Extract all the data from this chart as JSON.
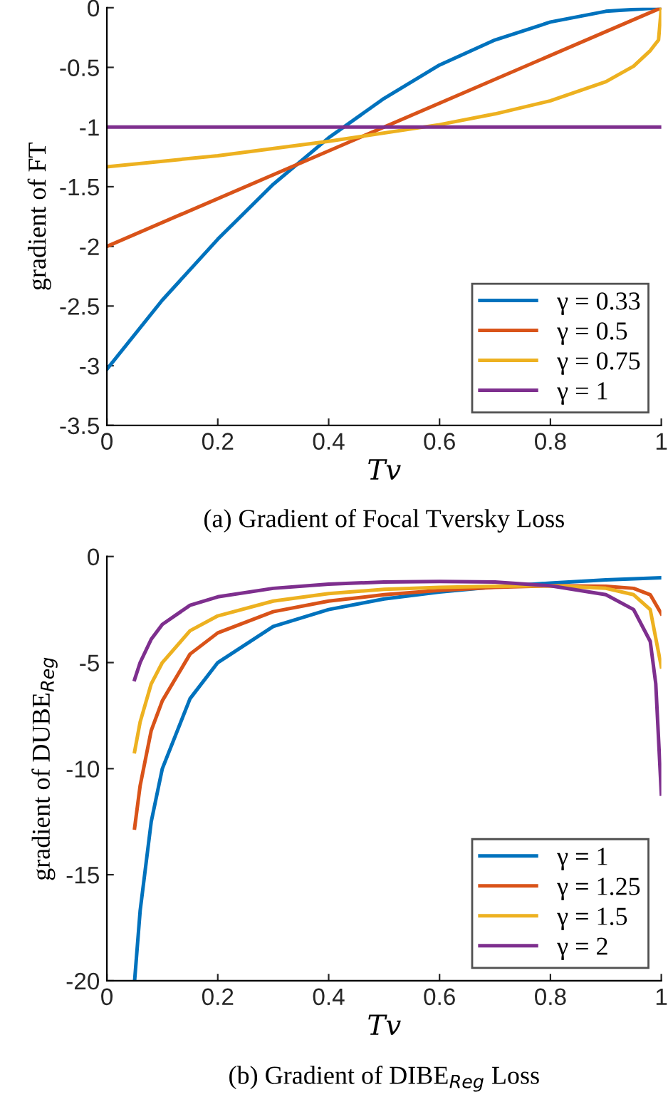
{
  "chart_data": [
    {
      "type": "line",
      "title": "(a) Gradient of Focal Tversky Loss",
      "xlabel": "Tv",
      "ylabel": "gradient of FT",
      "xlim": [
        0,
        1
      ],
      "ylim": [
        -3.5,
        0
      ],
      "xticks": [
        0,
        0.2,
        0.4,
        0.6,
        0.8,
        1
      ],
      "yticks": [
        -3.5,
        -3,
        -2.5,
        -2,
        -1.5,
        -1,
        -0.5,
        0
      ],
      "grid": false,
      "legend": "bottom right",
      "marker": "none",
      "line_style": "solid",
      "series": [
        {
          "name": "γ = 0.33",
          "color": "#0072bd",
          "x": [
            0,
            0.1,
            0.2,
            0.3,
            0.4,
            0.5,
            0.6,
            0.7,
            0.8,
            0.9,
            1
          ],
          "values": [
            -3.03,
            -2.45,
            -1.94,
            -1.48,
            -1.09,
            -0.76,
            -0.48,
            -0.27,
            -0.12,
            -0.03,
            0
          ]
        },
        {
          "name": "γ = 0.5",
          "color": "#d95319",
          "x": [
            0,
            1
          ],
          "values": [
            -2,
            0
          ]
        },
        {
          "name": "γ = 0.75",
          "color": "#edb120",
          "x": [
            0,
            0.2,
            0.4,
            0.6,
            0.7,
            0.8,
            0.9,
            0.95,
            0.98,
            0.995,
            1
          ],
          "values": [
            -1.333,
            -1.24,
            -1.12,
            -0.98,
            -0.89,
            -0.78,
            -0.62,
            -0.49,
            -0.36,
            -0.27,
            0
          ]
        },
        {
          "name": "γ = 1",
          "color": "#7e2f8e",
          "x": [
            0,
            1
          ],
          "values": [
            -1,
            -1
          ]
        }
      ]
    },
    {
      "type": "line",
      "title": "(b) Gradient of DIBE$_{Reg}$ Loss",
      "xlabel": "Tv",
      "ylabel": "gradient of DUBE$_{Reg}$",
      "xlim": [
        0,
        1
      ],
      "ylim": [
        -20,
        0
      ],
      "xticks": [
        0,
        0.2,
        0.4,
        0.6,
        0.8,
        1
      ],
      "yticks": [
        -20,
        -15,
        -10,
        -5,
        0
      ],
      "grid": false,
      "legend": "bottom right",
      "marker": "none",
      "line_style": "solid",
      "series": [
        {
          "name": "γ = 1",
          "color": "#0072bd",
          "x": [
            0.05,
            0.06,
            0.08,
            0.1,
            0.15,
            0.2,
            0.3,
            0.4,
            0.5,
            0.6,
            0.7,
            0.8,
            0.9,
            1
          ],
          "values": [
            -20,
            -16.7,
            -12.5,
            -10,
            -6.7,
            -5,
            -3.3,
            -2.5,
            -2,
            -1.67,
            -1.43,
            -1.25,
            -1.1,
            -1
          ]
        },
        {
          "name": "γ = 1.25",
          "color": "#d95319",
          "x": [
            0.05,
            0.06,
            0.08,
            0.1,
            0.15,
            0.2,
            0.3,
            0.4,
            0.5,
            0.6,
            0.7,
            0.8,
            0.9,
            0.95,
            0.98,
            1
          ],
          "values": [
            -12.8,
            -10.8,
            -8.2,
            -6.8,
            -4.6,
            -3.6,
            -2.6,
            -2.1,
            -1.8,
            -1.6,
            -1.45,
            -1.38,
            -1.4,
            -1.5,
            -1.8,
            -2.7
          ]
        },
        {
          "name": "γ = 1.5",
          "color": "#edb120",
          "x": [
            0.05,
            0.06,
            0.08,
            0.1,
            0.15,
            0.2,
            0.3,
            0.4,
            0.5,
            0.6,
            0.7,
            0.8,
            0.9,
            0.95,
            0.98,
            1
          ],
          "values": [
            -9.2,
            -7.8,
            -6,
            -5,
            -3.5,
            -2.8,
            -2.1,
            -1.75,
            -1.55,
            -1.45,
            -1.4,
            -1.38,
            -1.5,
            -1.8,
            -2.5,
            -5.2
          ]
        },
        {
          "name": "γ = 2",
          "color": "#7e2f8e",
          "x": [
            0.05,
            0.06,
            0.08,
            0.1,
            0.15,
            0.2,
            0.3,
            0.4,
            0.5,
            0.6,
            0.7,
            0.8,
            0.9,
            0.95,
            0.98,
            0.99,
            1
          ],
          "values": [
            -5.8,
            -5,
            -3.9,
            -3.2,
            -2.3,
            -1.9,
            -1.5,
            -1.3,
            -1.2,
            -1.18,
            -1.2,
            -1.38,
            -1.8,
            -2.5,
            -4,
            -6,
            -11.2
          ]
        }
      ]
    }
  ]
}
